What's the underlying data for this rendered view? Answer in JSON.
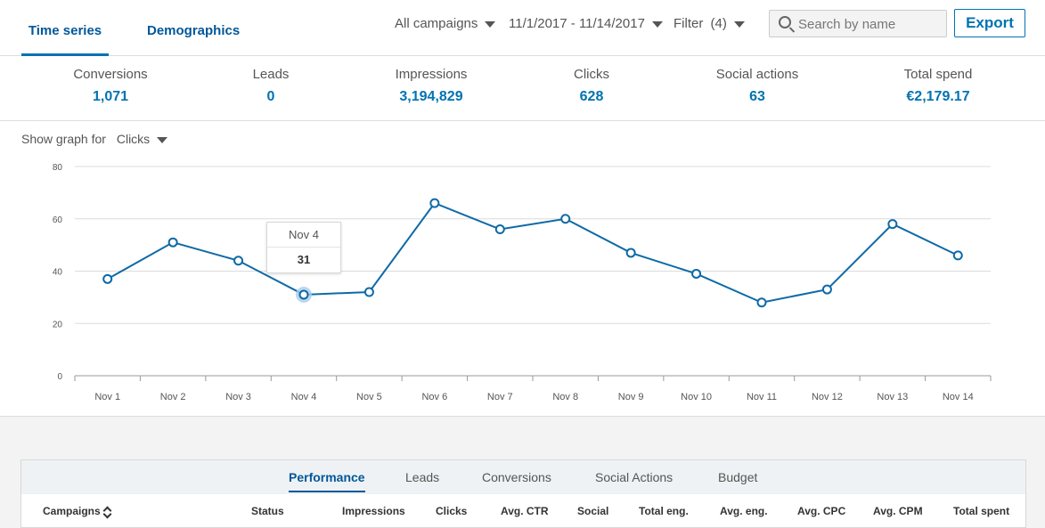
{
  "tabs": [
    {
      "label": "Time series",
      "active": true
    },
    {
      "label": "Demographics",
      "active": false
    }
  ],
  "toolbar": {
    "campaigns_dropdown": "All campaigns",
    "date_range": "11/1/2017 - 11/14/2017",
    "filter_label": "Filter",
    "filter_count": "(4)",
    "search_placeholder": "Search by name",
    "export_label": "Export"
  },
  "metrics": [
    {
      "label": "Conversions",
      "value": "1,071"
    },
    {
      "label": "Leads",
      "value": "0"
    },
    {
      "label": "Impressions",
      "value": "3,194,829"
    },
    {
      "label": "Clicks",
      "value": "628"
    },
    {
      "label": "Social actions",
      "value": "63"
    },
    {
      "label": "Total spend",
      "value": "€2,179.17"
    }
  ],
  "graph_selector": {
    "label": "Show graph for",
    "selected": "Clicks"
  },
  "chart_data": {
    "type": "line",
    "x": [
      "Nov 1",
      "Nov 2",
      "Nov 3",
      "Nov 4",
      "Nov 5",
      "Nov 6",
      "Nov 7",
      "Nov 8",
      "Nov 9",
      "Nov 10",
      "Nov 11",
      "Nov 12",
      "Nov 13",
      "Nov 14"
    ],
    "series": [
      {
        "values": [
          37,
          51,
          44,
          31,
          32,
          66,
          56,
          60,
          47,
          39,
          28,
          33,
          58,
          46
        ]
      }
    ],
    "ylim": [
      0,
      80
    ],
    "yticks": [
      0,
      20,
      40,
      60,
      80
    ],
    "grid": true,
    "line_color": "#0e6aa6",
    "highlight_index": 3
  },
  "tooltip": {
    "date": "Nov 4",
    "value": "31"
  },
  "table": {
    "sub_tabs": [
      {
        "label": "Performance",
        "active": true
      },
      {
        "label": "Leads",
        "active": false
      },
      {
        "label": "Conversions",
        "active": false
      },
      {
        "label": "Social Actions",
        "active": false
      },
      {
        "label": "Budget",
        "active": false
      }
    ],
    "columns": [
      "Campaigns",
      "Status",
      "Impressions",
      "Clicks",
      "Avg. CTR",
      "Social",
      "Total eng.",
      "Avg. eng.",
      "Avg. CPC",
      "Avg. CPM",
      "Total spent"
    ]
  }
}
